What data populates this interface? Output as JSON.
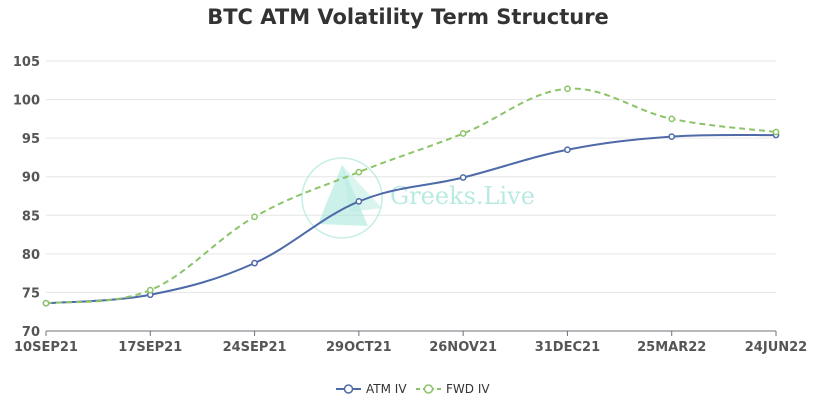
{
  "chart_data": {
    "type": "line",
    "title": "BTC ATM Volatility Term Structure",
    "xlabel": "",
    "ylabel": "",
    "categories": [
      "10SEP21",
      "17SEP21",
      "24SEP21",
      "29OCT21",
      "26NOV21",
      "31DEC21",
      "25MAR22",
      "24JUN22"
    ],
    "ylim": [
      70,
      105
    ],
    "yticks": [
      70,
      75,
      80,
      85,
      90,
      95,
      100,
      105
    ],
    "grid": true,
    "legend_position": "bottom-center",
    "series": [
      {
        "name": "ATM IV",
        "values": [
          73.6,
          74.7,
          78.8,
          86.8,
          89.9,
          93.5,
          95.2,
          95.4
        ],
        "color": "#4e6aa8",
        "style": "solid"
      },
      {
        "name": "FWD IV",
        "values": [
          73.6,
          75.3,
          84.8,
          90.6,
          95.6,
          101.4,
          97.5,
          95.8
        ],
        "color": "#8cc46a",
        "style": "dashed"
      }
    ]
  },
  "watermark": {
    "text": "Greeks.Live",
    "color": "#7fd9c9"
  }
}
